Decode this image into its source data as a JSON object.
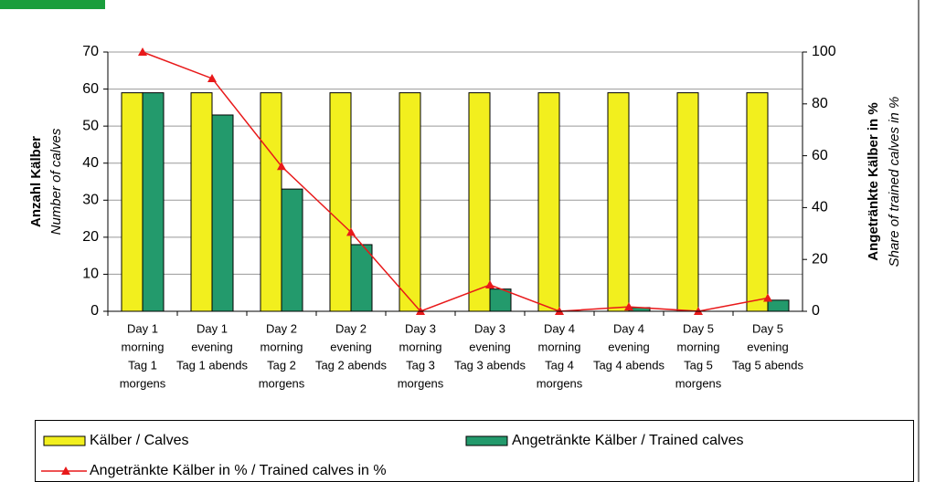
{
  "chart_data": {
    "type": "bar",
    "categories": [
      [
        "Day 1",
        "morning",
        "Tag 1",
        "morgens"
      ],
      [
        "Day 1",
        "evening",
        "Tag 1 abends"
      ],
      [
        "Day 2",
        "morning",
        "Tag 2",
        "morgens"
      ],
      [
        "Day 2",
        "evening",
        "Tag 2 abends"
      ],
      [
        "Day 3",
        "morning",
        "Tag 3",
        "morgens"
      ],
      [
        "Day 3",
        "evening",
        "Tag 3 abends"
      ],
      [
        "Day 4",
        "morning",
        "Tag 4",
        "morgens"
      ],
      [
        "Day 4",
        "evening",
        "Tag 4 abends"
      ],
      [
        "Day 5",
        "morning",
        "Tag 5",
        "morgens"
      ],
      [
        "Day 5",
        "evening",
        "Tag 5 abends"
      ]
    ],
    "series": [
      {
        "name": "Kälber / Calves",
        "type": "bar",
        "color": "#f2ef1e",
        "values": [
          59,
          59,
          59,
          59,
          59,
          59,
          59,
          59,
          59,
          59
        ]
      },
      {
        "name": "Angetränkte Kälber / Trained calves",
        "type": "bar",
        "color": "#239a6c",
        "values": [
          59,
          53,
          33,
          18,
          0,
          6,
          0,
          1,
          0,
          3
        ]
      },
      {
        "name": "Angetränkte Kälber in % / Trained calves in %",
        "type": "line",
        "axis": "y2",
        "color": "#e8191a",
        "values": [
          100,
          89.8,
          55.9,
          30.5,
          0,
          10.2,
          0,
          1.7,
          0,
          5.1
        ]
      }
    ],
    "ylabel": "Anzahl Kälber",
    "ylabel_sub": "Number of calves",
    "y2label": "Angetränkte Kälber in %",
    "y2label_sub": "Share of trained calves in %",
    "ylim": [
      0,
      70
    ],
    "yticks": [
      0,
      10,
      20,
      30,
      40,
      50,
      60,
      70
    ],
    "y2lim": [
      0,
      100
    ],
    "y2ticks": [
      0,
      20,
      40,
      60,
      80,
      100
    ],
    "grid": true
  }
}
